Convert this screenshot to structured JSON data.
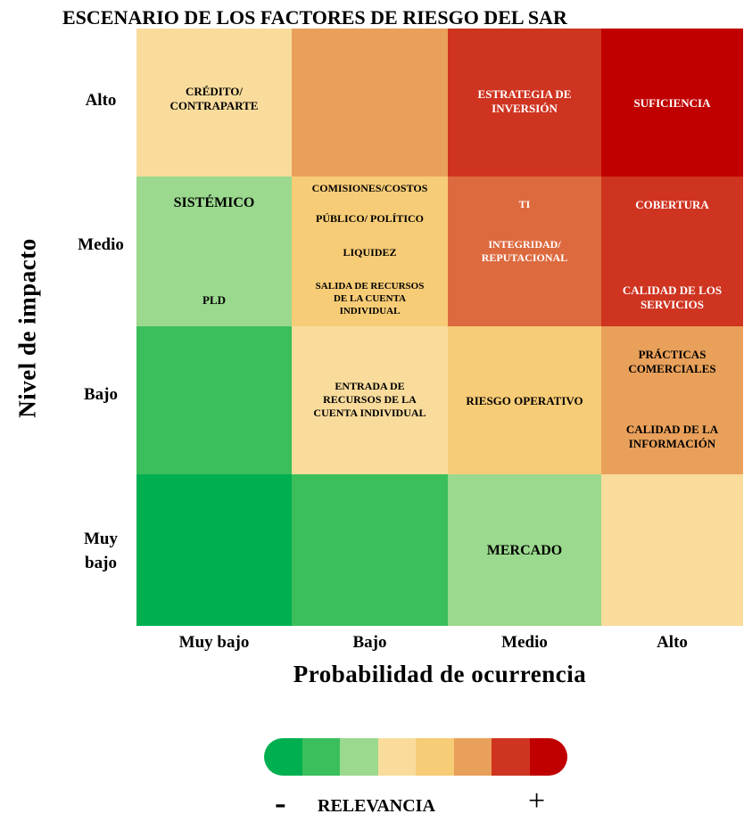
{
  "title": "ESCENARIO DE LOS FACTORES DE RIESGO DEL SAR",
  "chart_data": {
    "type": "heatmap",
    "title": "ESCENARIO DE LOS FACTORES DE RIESGO DEL SAR",
    "xlabel": "Probabilidad de ocurrencia",
    "ylabel": "Nivel de impacto",
    "x_categories": [
      "Muy bajo",
      "Bajo",
      "Medio",
      "Alto"
    ],
    "y_categories": [
      "Alto",
      "Medio",
      "Bajo",
      "Muy\nbajo"
    ],
    "cells": [
      {
        "row": 0,
        "col": 0,
        "color": "#f9dc9c",
        "items": [
          "CRÉDITO/\nCONTRAPARTE"
        ]
      },
      {
        "row": 0,
        "col": 1,
        "color": "#e9a05a",
        "items": []
      },
      {
        "row": 0,
        "col": 2,
        "color": "#cf3421",
        "items": [
          "ESTRATEGIA DE\nINVERSIÓN"
        ]
      },
      {
        "row": 0,
        "col": 3,
        "color": "#c00000",
        "items": [
          "SUFICIENCIA"
        ]
      },
      {
        "row": 1,
        "col": 0,
        "color": "#9bd98e",
        "items": [
          "SISTÉMICO",
          "PLD"
        ]
      },
      {
        "row": 1,
        "col": 1,
        "color": "#f7cc76",
        "items": [
          "COMISIONES/COSTOS",
          "PÚBLICO/  POLÍTICO",
          "LIQUIDEZ",
          "SALIDA DE RECURSOS\nDE LA CUENTA\nINDIVIDUAL"
        ]
      },
      {
        "row": 1,
        "col": 2,
        "color": "#dd6a3f",
        "items": [
          "TI",
          "INTEGRIDAD/\nREPUTACIONAL"
        ]
      },
      {
        "row": 1,
        "col": 3,
        "color": "#cf3421",
        "items": [
          "COBERTURA",
          "CALIDAD DE LOS\nSERVICIOS"
        ]
      },
      {
        "row": 2,
        "col": 0,
        "color": "#3bbf5c",
        "items": []
      },
      {
        "row": 2,
        "col": 1,
        "color": "#f9dc9c",
        "items": [
          "ENTRADA DE\nRECURSOS DE LA\nCUENTA INDIVIDUAL"
        ]
      },
      {
        "row": 2,
        "col": 2,
        "color": "#f7cc76",
        "items": [
          "RIESGO OPERATIVO"
        ]
      },
      {
        "row": 2,
        "col": 3,
        "color": "#e9a05a",
        "items": [
          "PRÁCTICAS\nCOMERCIALES",
          "CALIDAD DE LA\nINFORMACIÓN"
        ]
      },
      {
        "row": 3,
        "col": 0,
        "color": "#00b050",
        "items": []
      },
      {
        "row": 3,
        "col": 1,
        "color": "#3bbf5c",
        "items": []
      },
      {
        "row": 3,
        "col": 2,
        "color": "#9bd98e",
        "items": [
          "MERCADO"
        ]
      },
      {
        "row": 3,
        "col": 3,
        "color": "#f9dc9c",
        "items": []
      }
    ],
    "legend": {
      "label": "RELEVANCIA",
      "low_symbol": "-",
      "high_symbol": "+",
      "colors": [
        "#00b050",
        "#3bbf5c",
        "#9bd98e",
        "#f9dc9c",
        "#f7cc76",
        "#e9a05a",
        "#cf3421",
        "#c00000"
      ]
    }
  }
}
